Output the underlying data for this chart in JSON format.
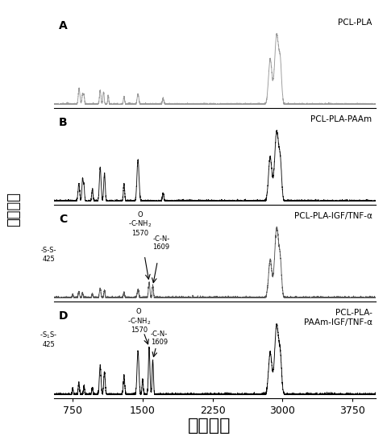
{
  "title": "",
  "xlabel": "拉曼位移",
  "ylabel": "相对强度",
  "xlim": [
    550,
    4000
  ],
  "panels": [
    "A",
    "B",
    "C",
    "D"
  ],
  "panel_labels": [
    "PCL-PLA",
    "PCL-PLA-PAAm",
    "PCL-PLA-IGF/TNF-α",
    "PCL-PLA-\nPAAm-IGF/TNF-α"
  ],
  "panel_colors": [
    "#999999",
    "#111111",
    "#555555",
    "#000000"
  ],
  "background": "#ffffff",
  "xticks": [
    750,
    1500,
    2250,
    3000,
    3750
  ],
  "xlabel_fontsize": 16,
  "ylabel_fontsize": 13,
  "tick_fontsize": 9,
  "panel_label_fontsize": 8
}
